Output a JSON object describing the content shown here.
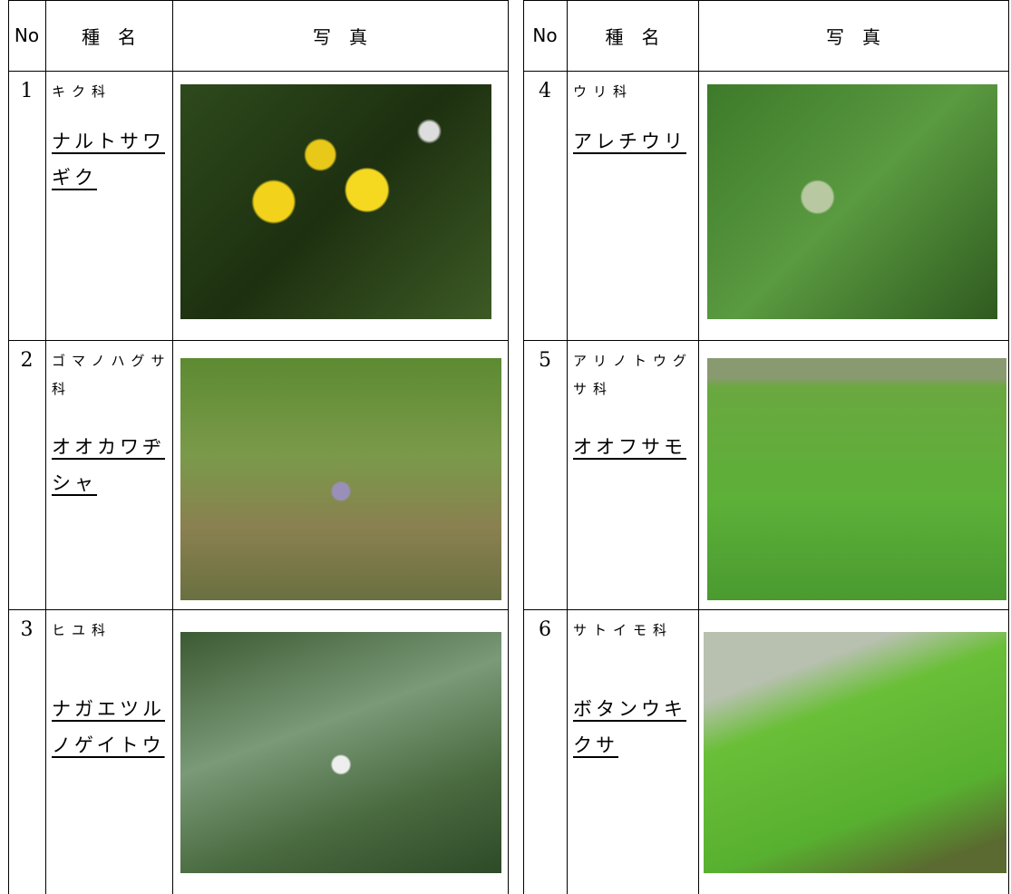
{
  "header": {
    "no": "No",
    "name": "種　名",
    "photo": "写　真"
  },
  "rows": [
    {
      "no": "1",
      "family": "キク科",
      "name": "ナルトサワギク"
    },
    {
      "no": "2",
      "family": "ゴマノハグサ科",
      "name": "オオカワヂシャ"
    },
    {
      "no": "3",
      "family": "ヒユ科",
      "name": "ナガエツルノゲイトウ"
    },
    {
      "no": "4",
      "family": "ウリ科",
      "name": "アレチウリ"
    },
    {
      "no": "5",
      "family": "アリノトウグサ科",
      "name": "オオフサモ"
    },
    {
      "no": "6",
      "family": "サトイモ科",
      "name": "ボタンウキクサ"
    }
  ]
}
